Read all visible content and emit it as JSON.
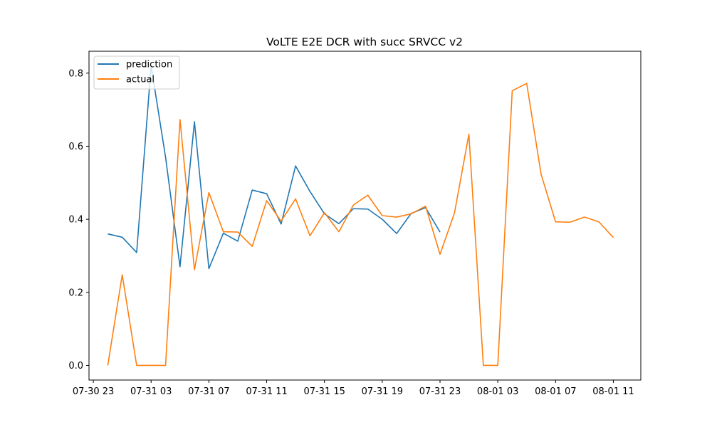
{
  "chart_data": {
    "type": "line",
    "title": "VoLTE E2E DCR with succ SRVCC v2",
    "xlabel": "",
    "ylabel": "",
    "x_unit": "hour",
    "x_start": "2024-07-30 23:00",
    "x_tick_labels": [
      "07-30 23",
      "07-31 03",
      "07-31 07",
      "07-31 11",
      "07-31 15",
      "07-31 19",
      "07-31 23",
      "08-01 03",
      "08-01 07",
      "08-01 11"
    ],
    "x_tick_hours": [
      -1,
      3,
      7,
      11,
      15,
      19,
      23,
      27,
      31,
      35
    ],
    "y_ticks": [
      0.0,
      0.2,
      0.4,
      0.6,
      0.8
    ],
    "y_tick_labels": [
      "0.0",
      "0.2",
      "0.4",
      "0.6",
      "0.8"
    ],
    "ylim": [
      -0.04,
      0.86
    ],
    "xlim_hours": [
      -1.3,
      36.9
    ],
    "grid": false,
    "legend_position": "top-left",
    "series": [
      {
        "name": "prediction",
        "color": "#1f77b4",
        "x_start_hour": 0,
        "values": [
          0.36,
          0.351,
          0.309,
          0.82,
          0.57,
          0.27,
          0.667,
          0.265,
          0.362,
          0.34,
          0.48,
          0.47,
          0.387,
          0.546,
          0.476,
          0.415,
          0.388,
          0.429,
          0.428,
          0.4,
          0.361,
          0.416,
          0.432,
          0.365
        ]
      },
      {
        "name": "actual",
        "color": "#ff7f0e",
        "x_start_hour": 0,
        "values": [
          0.0,
          0.248,
          0.0,
          0.0,
          0.0,
          0.673,
          0.262,
          0.473,
          0.366,
          0.365,
          0.326,
          0.451,
          0.395,
          0.456,
          0.355,
          0.418,
          0.366,
          0.439,
          0.466,
          0.41,
          0.406,
          0.415,
          0.436,
          0.304,
          0.417,
          0.633,
          0.0,
          0.0,
          0.752,
          0.772,
          0.523,
          0.393,
          0.392,
          0.406,
          0.393,
          0.35
        ]
      }
    ]
  }
}
